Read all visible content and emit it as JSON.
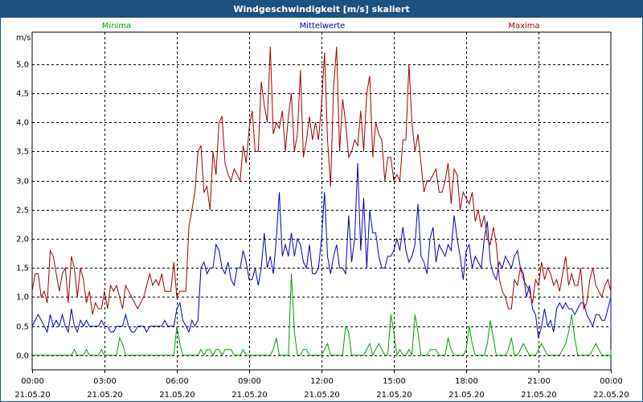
{
  "window_title": "Windgeschwindigkeit [m/s] skaliert",
  "colors": {
    "minima": "#00a000",
    "mittel": "#0000c0",
    "maxima": "#a00000",
    "titlebar": "#1c5180",
    "grid": "#000000"
  },
  "chart_data": {
    "type": "line",
    "title": "Windgeschwindigkeit [m/s] skaliert",
    "ylabel": "m/s",
    "xlabel": "",
    "ylim": [
      -0.25,
      5.55
    ],
    "yticks": [
      "0,0",
      "0,5",
      "1,0",
      "1,5",
      "2,0",
      "2,5",
      "3,0",
      "3,5",
      "4,0",
      "4,5",
      "5,0"
    ],
    "ytick_values": [
      0,
      0.5,
      1,
      1.5,
      2,
      2.5,
      3,
      3.5,
      4,
      4.5,
      5
    ],
    "xlim": [
      0,
      24
    ],
    "xticks": [
      {
        "time": "00:00",
        "date": "21.05.20",
        "hour": 0
      },
      {
        "time": "03:00",
        "date": "21.05.20",
        "hour": 3
      },
      {
        "time": "06:00",
        "date": "21.05.20",
        "hour": 6
      },
      {
        "time": "09:00",
        "date": "21.05.20",
        "hour": 9
      },
      {
        "time": "12:00",
        "date": "21.05.20",
        "hour": 12
      },
      {
        "time": "15:00",
        "date": "21.05.20",
        "hour": 15
      },
      {
        "time": "18:00",
        "date": "21.05.20",
        "hour": 18
      },
      {
        "time": "21:00",
        "date": "21.05.20",
        "hour": 21
      },
      {
        "time": "00:00",
        "date": "22.05.20",
        "hour": 24
      }
    ],
    "grid": true,
    "step_hours": 0.125,
    "series": [
      {
        "name": "Minima",
        "color": "#00a000",
        "values": [
          0.0,
          0.0,
          0.0,
          0.0,
          0.0,
          0.0,
          0.0,
          0.0,
          0.0,
          0.0,
          0.0,
          0.0,
          0.0,
          0.0,
          0.1,
          0.0,
          0.0,
          0.0,
          0.1,
          0.0,
          0.0,
          0.0,
          0.0,
          0.1,
          0.0,
          0.0,
          0.0,
          0.0,
          0.0,
          0.3,
          0.2,
          0.0,
          0.0,
          0.0,
          0.0,
          0.0,
          0.0,
          0.0,
          0.0,
          0.0,
          0.0,
          0.0,
          0.0,
          0.0,
          0.0,
          0.0,
          0.0,
          0.0,
          0.5,
          0.2,
          0.0,
          0.0,
          0.0,
          0.0,
          0.0,
          0.0,
          0.1,
          0.0,
          0.1,
          0.1,
          0.0,
          0.1,
          0.1,
          0.0,
          0.1,
          0.1,
          0.1,
          0.0,
          0.0,
          0.0,
          0.1,
          0.0,
          0.0,
          0.0,
          0.0,
          0.0,
          0.0,
          0.0,
          0.0,
          0.0,
          0.0,
          0.0,
          0.1,
          0.0,
          0.0,
          0.1,
          0.0,
          0.0,
          0.0,
          0.0,
          0.0,
          0.0,
          0.0,
          0.0,
          0.0,
          0.0,
          0.0,
          0.0,
          0.0,
          0.0,
          0.0,
          0.0,
          0.0,
          0.0,
          0.0,
          0.0,
          0.0,
          0.0,
          0.0,
          0.0,
          0.0,
          0.0,
          0.0,
          0.0,
          0.0,
          0.0,
          0.0,
          0.0,
          0.0,
          0.0,
          0.0,
          0.0,
          0.0,
          0.0,
          0.0,
          0.0,
          0.0,
          0.0,
          0.0,
          0.0,
          0.0,
          0.0,
          0.0,
          0.0,
          0.0,
          0.0,
          0.0,
          0.0,
          0.0,
          0.0,
          0.0,
          0.0,
          0.0,
          0.0,
          0.0,
          0.0,
          0.0,
          0.0,
          0.0,
          0.0,
          0.0,
          0.0,
          0.0,
          0.0,
          0.0,
          0.0,
          0.0,
          0.0,
          0.0,
          0.0,
          0.0,
          0.0,
          0.0,
          0.0,
          0.0,
          0.0,
          0.0,
          0.0,
          0.0,
          0.0,
          0.0,
          0.0,
          0.0,
          0.0,
          0.0,
          0.0,
          0.0,
          0.0,
          0.0,
          0.0,
          0.0,
          0.0,
          0.0,
          0.0,
          0.0,
          0.0,
          0.0,
          0.0,
          0.0,
          0.0,
          0.0,
          0.0,
          0.0,
          0.0,
          0.0,
          0.0
        ],
        "_note": "placeholder replaced below"
      },
      {
        "name": "Mittelwerte",
        "color": "#0000c0",
        "values": []
      },
      {
        "name": "Maxima",
        "color": "#a00000",
        "values": []
      }
    ]
  }
}
